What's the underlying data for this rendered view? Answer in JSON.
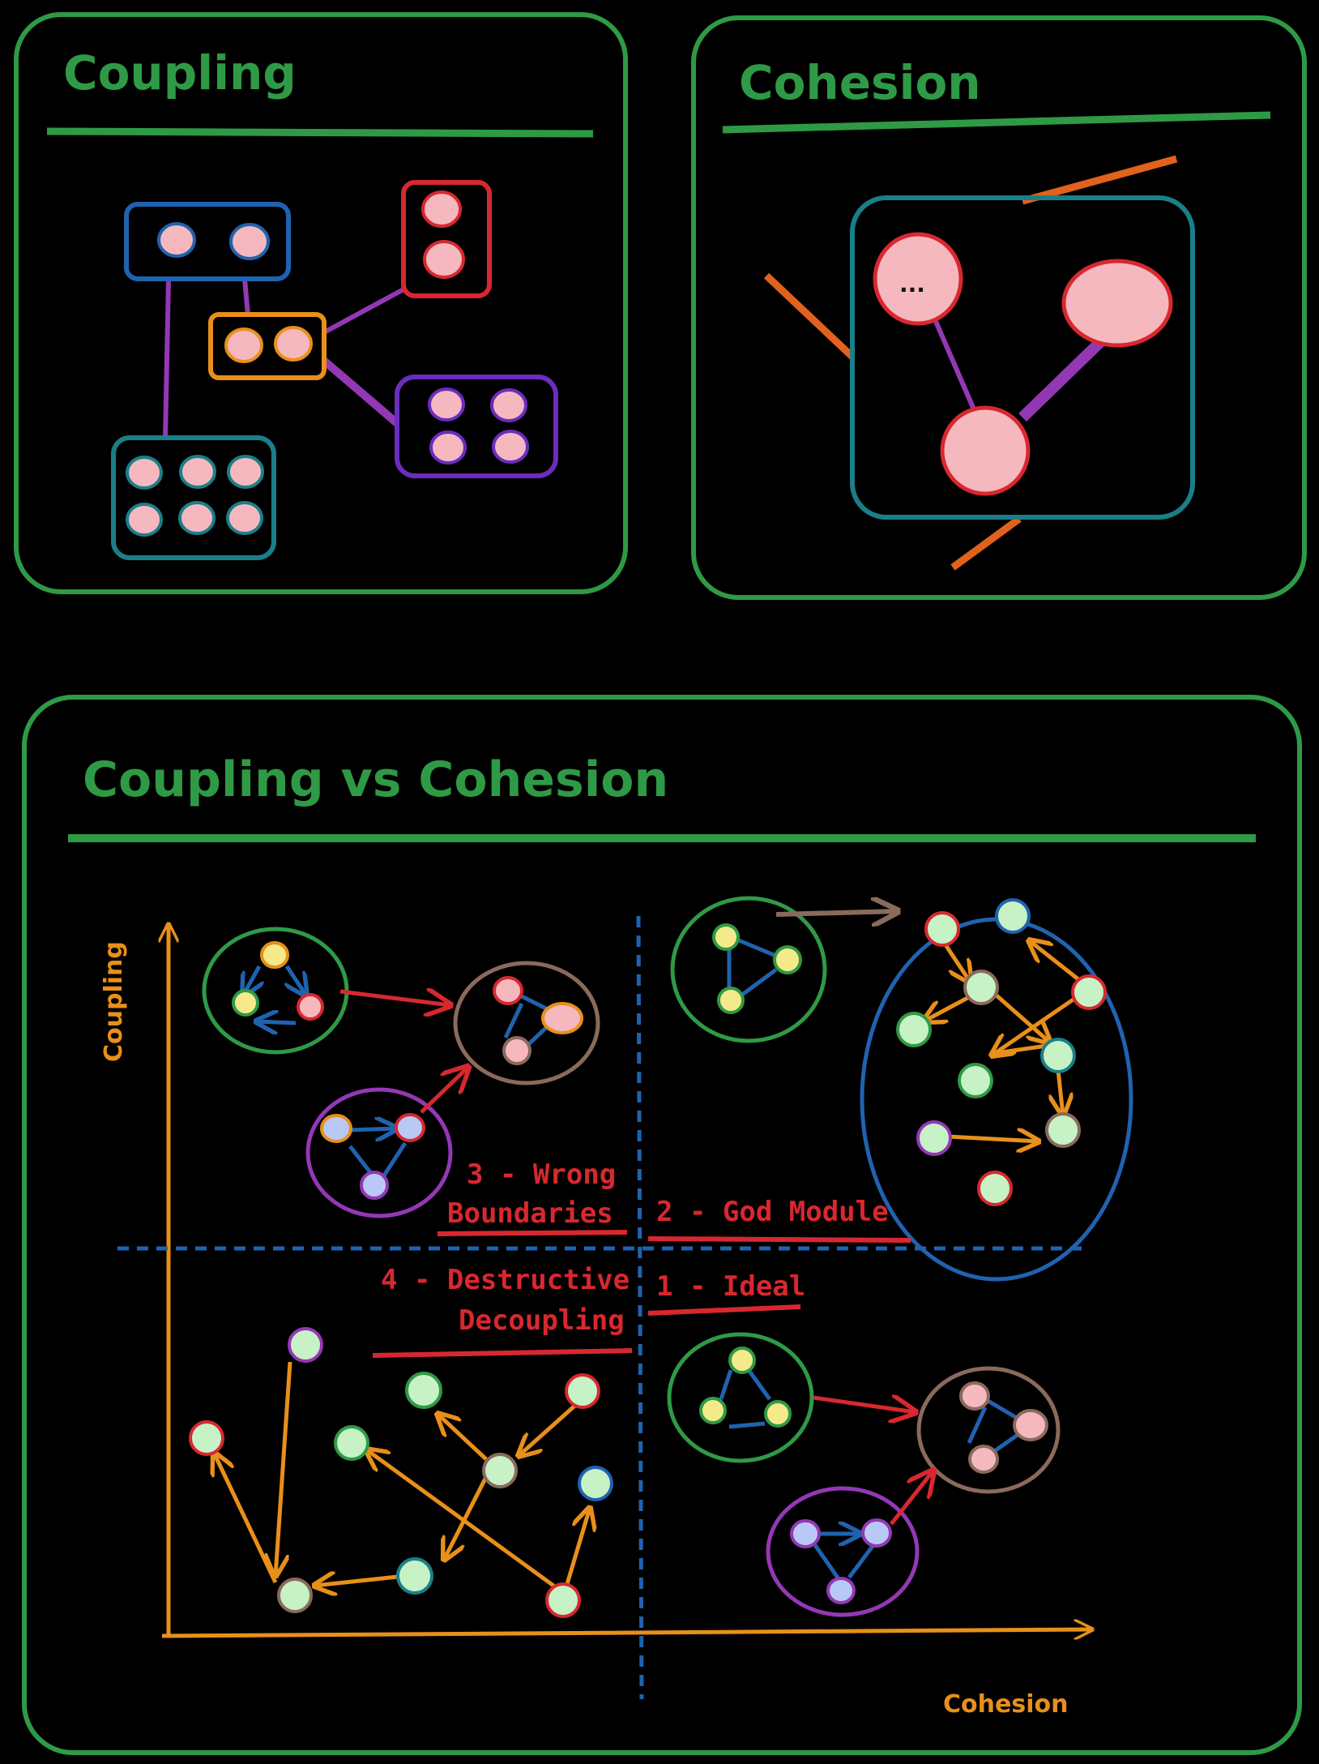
{
  "panels": {
    "coupling": {
      "title": "Coupling"
    },
    "cohesion": {
      "title": "Cohesion"
    },
    "comparison": {
      "title": "Coupling vs Cohesion"
    }
  },
  "axes": {
    "y_label": "Coupling",
    "x_label": "Cohesion"
  },
  "quadrants": {
    "q1": "1 - Ideal",
    "q2": "2 - God Module",
    "q3_line1": "3 - Wrong",
    "q3_line2": "Boundaries",
    "q4_line1": "4 - Destructive",
    "q4_line2": "Decoupling"
  },
  "cohesion_panel": {
    "dots": "..."
  },
  "colors": {
    "frame": "#2f9a45",
    "axis": "#e8901a",
    "divider": "#1f63b0",
    "label": "#d8282f",
    "node_fill": "#f6b8bf"
  }
}
